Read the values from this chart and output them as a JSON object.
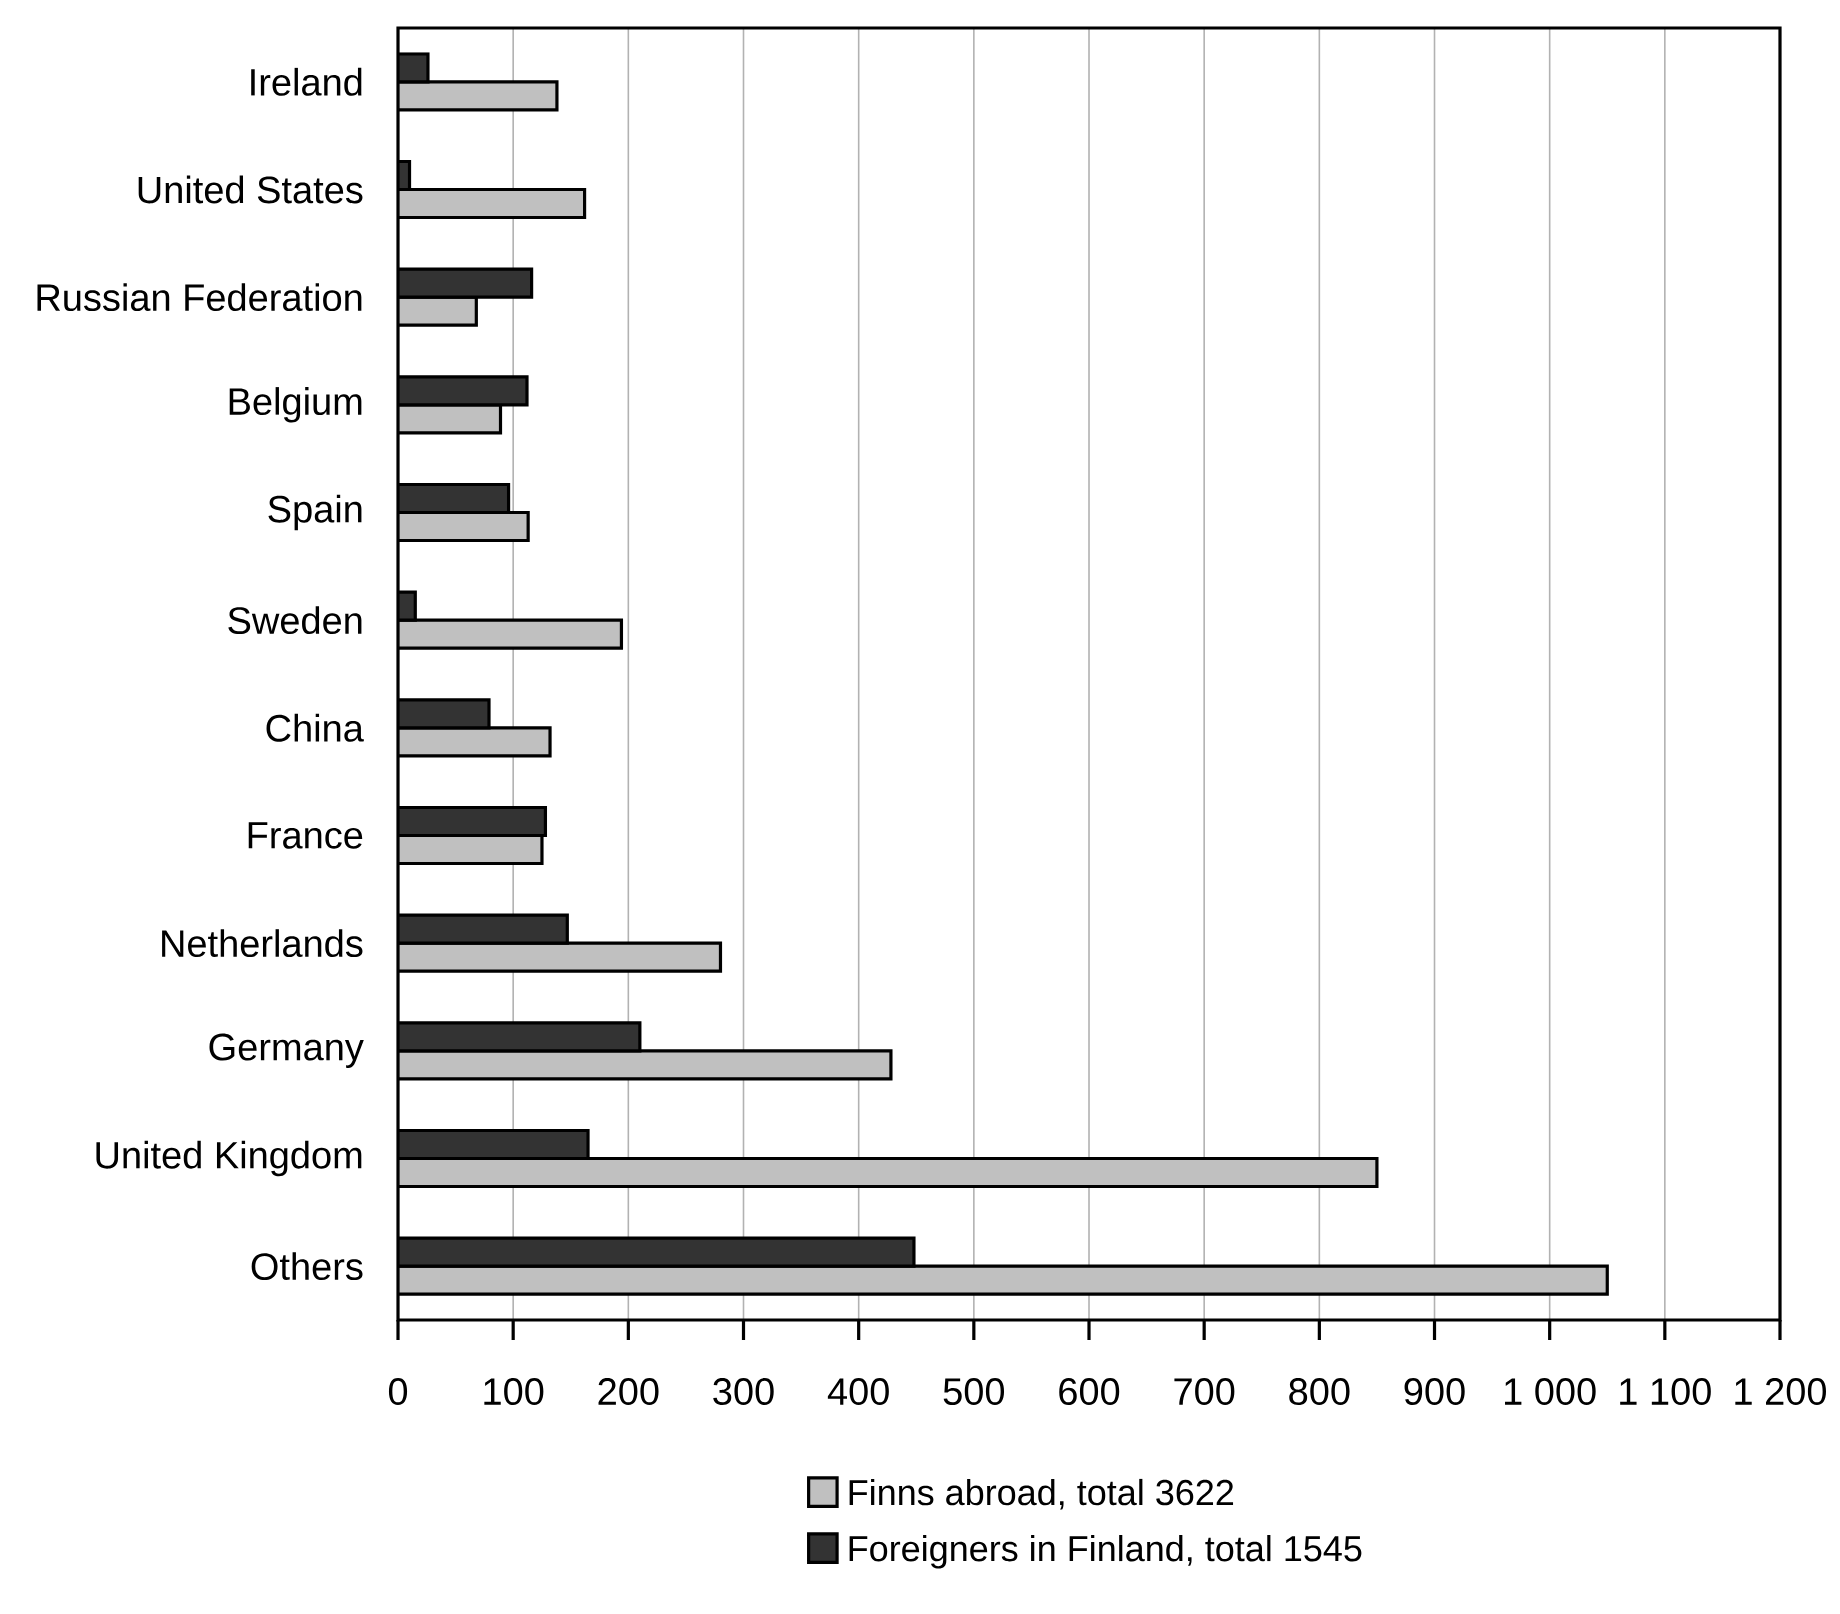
{
  "chart_data": {
    "type": "bar",
    "orientation": "horizontal",
    "categories": [
      "Ireland",
      "United States",
      "Russian Federation",
      "Belgium",
      "Spain",
      "Sweden",
      "China",
      "France",
      "Netherlands",
      "Germany",
      "United Kingdom",
      "Others"
    ],
    "series": [
      {
        "name": "Finns abroad, total 3622",
        "color": "#c0c0c0",
        "values": [
          138,
          162,
          68,
          89,
          113,
          194,
          132,
          125,
          280,
          428,
          850,
          1050
        ]
      },
      {
        "name": "Foreigners in Finland, total 1545",
        "color": "#333333",
        "values": [
          26,
          10,
          116,
          112,
          96,
          15,
          79,
          128,
          147,
          210,
          165,
          448
        ]
      }
    ],
    "xlim": [
      0,
      1200
    ],
    "xticks": [
      0,
      100,
      200,
      300,
      400,
      500,
      600,
      700,
      800,
      900,
      {
        "value": 1000,
        "label": "1 000"
      },
      {
        "value": 1100,
        "label": "1 100"
      },
      {
        "value": 1200,
        "label": "1 200"
      }
    ],
    "grid": "x",
    "legend": "bottom"
  }
}
